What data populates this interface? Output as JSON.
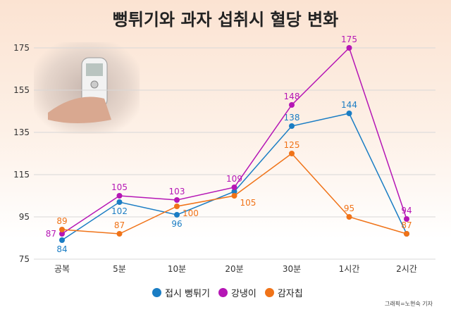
{
  "chart_data": {
    "type": "line",
    "title": "뻥튀기와 과자 섭취시 혈당 변화",
    "categories": [
      "공복",
      "5분",
      "10분",
      "20분",
      "30분",
      "1시간",
      "2시간"
    ],
    "ylim": [
      75,
      175
    ],
    "yticks": [
      75,
      95,
      115,
      135,
      155,
      175
    ],
    "grid": true,
    "legend_position": "bottom",
    "series": [
      {
        "name": "접시 뻥튀기",
        "color": "#1a7dc4",
        "values": [
          84,
          102,
          96,
          107,
          138,
          144,
          87
        ],
        "labels": [
          "84",
          "102",
          "96",
          "",
          "138",
          "144",
          ""
        ]
      },
      {
        "name": "강냉이",
        "color": "#b516b5",
        "values": [
          87,
          105,
          103,
          109,
          148,
          175,
          94
        ],
        "labels": [
          "87",
          "105",
          "103",
          "109",
          "148",
          "175",
          "94"
        ]
      },
      {
        "name": "감자칩",
        "color": "#f07318",
        "values": [
          89,
          87,
          100,
          105,
          125,
          95,
          87
        ],
        "labels": [
          "89",
          "87",
          "100",
          "105",
          "125",
          "95",
          "87"
        ]
      }
    ]
  },
  "credit": "그래픽=노현숙 기자"
}
